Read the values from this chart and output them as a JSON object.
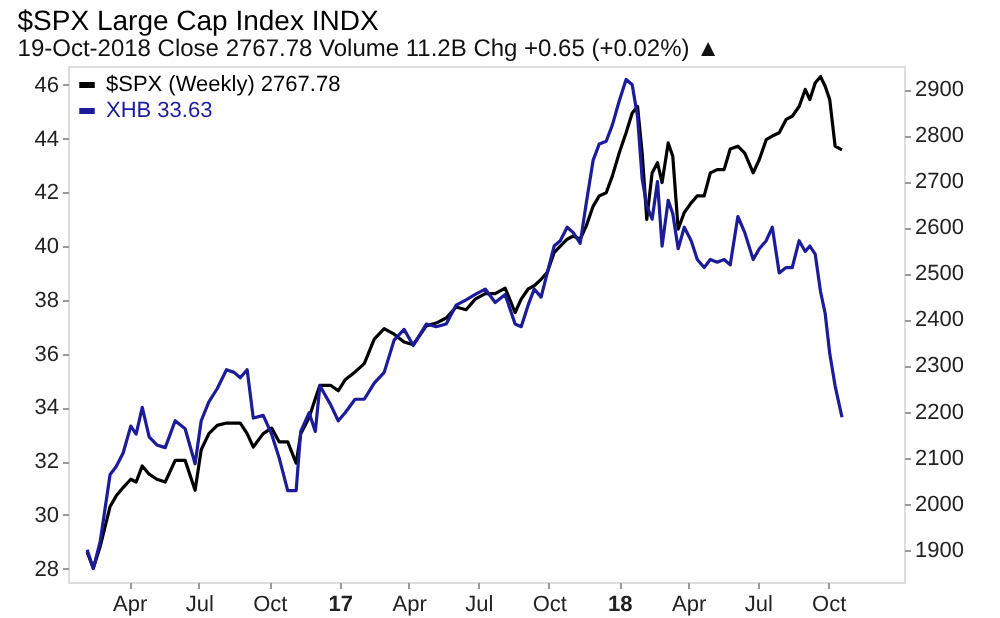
{
  "chart_data": {
    "type": "line",
    "title": "$SPX Large Cap Index INDX",
    "subtitle": "19-Oct-2018          Close 2767.78  Volume 11.2B  Chg +0.65 (+0.02%) ▲",
    "x": [
      "2016-02-06",
      "2016-02-14",
      "2016-02-23",
      "2016-03-07",
      "2016-03-15",
      "2016-03-24",
      "2016-04-03",
      "2016-04-10",
      "2016-04-18",
      "2016-04-27",
      "2016-05-07",
      "2016-05-18",
      "2016-05-31",
      "2016-06-13",
      "2016-06-26",
      "2016-07-04",
      "2016-07-14",
      "2016-07-25",
      "2016-08-06",
      "2016-08-16",
      "2016-08-24",
      "2016-09-02",
      "2016-09-10",
      "2016-09-23",
      "2016-10-04",
      "2016-10-14",
      "2016-10-25",
      "2016-11-05",
      "2016-11-11",
      "2016-11-22",
      "2016-11-30",
      "2016-12-06",
      "2016-12-20",
      "2016-12-30",
      "2017-01-08",
      "2017-01-21",
      "2017-02-02",
      "2017-02-15",
      "2017-02-28",
      "2017-03-13",
      "2017-03-26",
      "2017-04-07",
      "2017-04-24",
      "2017-05-07",
      "2017-05-20",
      "2017-06-02",
      "2017-06-15",
      "2017-06-27",
      "2017-07-10",
      "2017-07-23",
      "2017-08-05",
      "2017-08-18",
      "2017-08-26",
      "2017-09-04",
      "2017-09-12",
      "2017-09-21",
      "2017-09-29",
      "2017-10-08",
      "2017-10-16",
      "2017-10-25",
      "2017-11-02",
      "2017-11-11",
      "2017-11-19",
      "2017-11-28",
      "2017-12-06",
      "2017-12-15",
      "2017-12-23",
      "2018-01-01",
      "2018-01-10",
      "2018-01-18",
      "2018-01-25",
      "2018-01-31",
      "2018-02-06",
      "2018-02-13",
      "2018-02-20",
      "2018-02-26",
      "2018-03-06",
      "2018-03-12",
      "2018-03-19",
      "2018-03-27",
      "2018-04-05",
      "2018-04-13",
      "2018-04-22",
      "2018-04-30",
      "2018-05-09",
      "2018-05-18",
      "2018-05-26",
      "2018-06-05",
      "2018-06-14",
      "2018-06-25",
      "2018-07-03",
      "2018-07-12",
      "2018-07-20",
      "2018-07-29",
      "2018-08-07",
      "2018-08-15",
      "2018-08-24",
      "2018-09-01",
      "2018-09-07",
      "2018-09-14",
      "2018-09-21",
      "2018-09-27",
      "2018-10-03",
      "2018-10-10",
      "2018-10-19"
    ],
    "xlim": [
      "2016-01-12",
      "2019-01-08"
    ],
    "xticks": [
      {
        "value": "2016-04-01",
        "label": "Apr"
      },
      {
        "value": "2016-07-01",
        "label": "Jul"
      },
      {
        "value": "2016-10-01",
        "label": "Oct"
      },
      {
        "value": "2017-01-01",
        "label": "17"
      },
      {
        "value": "2017-04-01",
        "label": "Apr"
      },
      {
        "value": "2017-07-01",
        "label": "Jul"
      },
      {
        "value": "2017-10-01",
        "label": "Oct"
      },
      {
        "value": "2018-01-01",
        "label": "18"
      },
      {
        "value": "2018-04-01",
        "label": "Apr"
      },
      {
        "value": "2018-07-01",
        "label": "Jul"
      },
      {
        "value": "2018-10-01",
        "label": "Oct"
      }
    ],
    "ylim": [
      27.5,
      46.7
    ],
    "yticks": [
      28,
      30,
      32,
      34,
      36,
      38,
      40,
      42,
      44,
      46
    ],
    "y2lim": [
      1830,
      2950
    ],
    "y2ticks": [
      1900,
      2000,
      2100,
      2200,
      2300,
      2400,
      2500,
      2600,
      2700,
      2800,
      2900
    ],
    "grid": false,
    "legend": "top left",
    "series": [
      {
        "name": "$SPX (Weekly) 2767.78",
        "color": "#000000",
        "axis": "y2",
        "values": [
          1895,
          1860,
          1907,
          1994,
          2017,
          2035,
          2053,
          2047,
          2082,
          2064,
          2053,
          2047,
          2094,
          2094,
          2029,
          2117,
          2152,
          2170,
          2175,
          2175,
          2175,
          2152,
          2123,
          2152,
          2164,
          2134,
          2134,
          2088,
          2152,
          2187,
          2228,
          2257,
          2257,
          2245,
          2269,
          2286,
          2304,
          2357,
          2380,
          2368,
          2351,
          2345,
          2386,
          2392,
          2403,
          2427,
          2421,
          2444,
          2456,
          2456,
          2468,
          2415,
          2444,
          2466,
          2473,
          2487,
          2502,
          2545,
          2559,
          2574,
          2581,
          2574,
          2603,
          2646,
          2668,
          2675,
          2711,
          2761,
          2805,
          2848,
          2862,
          2761,
          2617,
          2718,
          2740,
          2697,
          2783,
          2754,
          2596,
          2632,
          2653,
          2668,
          2668,
          2718,
          2725,
          2725,
          2770,
          2776,
          2761,
          2718,
          2747,
          2790,
          2798,
          2805,
          2834,
          2841,
          2862,
          2899,
          2877,
          2913,
          2927,
          2906,
          2877,
          2776,
          2768
        ]
      },
      {
        "name": "XHB 33.63",
        "color": "#1c1c9a",
        "axis": "y",
        "values": [
          28.7,
          28.0,
          29.0,
          31.5,
          31.8,
          32.3,
          33.3,
          33.0,
          34.0,
          32.9,
          32.6,
          32.5,
          33.5,
          33.2,
          31.9,
          33.5,
          34.2,
          34.7,
          35.4,
          35.3,
          35.1,
          35.4,
          33.6,
          33.7,
          33.0,
          32.1,
          30.9,
          30.9,
          33.1,
          33.8,
          33.1,
          34.8,
          34.1,
          33.5,
          33.8,
          34.3,
          34.3,
          34.9,
          35.3,
          36.5,
          36.9,
          36.3,
          37.1,
          37.0,
          37.1,
          37.8,
          38.0,
          38.2,
          38.4,
          37.9,
          38.2,
          37.1,
          37.0,
          37.8,
          38.4,
          38.1,
          39.0,
          40.0,
          40.2,
          40.7,
          40.5,
          40.1,
          41.6,
          43.2,
          43.8,
          43.9,
          44.5,
          45.4,
          46.2,
          46.0,
          44.8,
          42.5,
          41.5,
          41.0,
          42.4,
          40.0,
          41.7,
          41.2,
          39.9,
          40.7,
          40.2,
          39.5,
          39.2,
          39.5,
          39.4,
          39.5,
          39.3,
          41.1,
          40.5,
          39.5,
          39.9,
          40.2,
          40.7,
          39.0,
          39.2,
          39.2,
          40.2,
          39.8,
          40.0,
          39.7,
          38.3,
          37.5,
          36.0,
          34.8,
          33.63
        ]
      }
    ]
  }
}
